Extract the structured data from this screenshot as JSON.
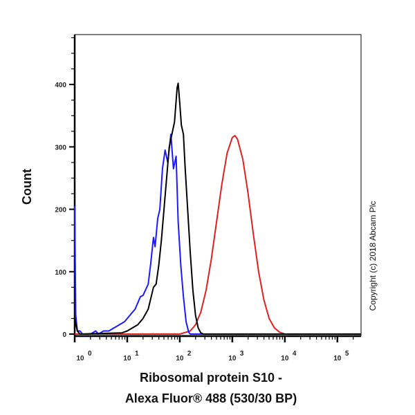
{
  "chart_data": {
    "type": "line",
    "xlabel_lines": [
      "Ribosomal protein S10 -",
      "Alexa Fluor® 488 (530/30 BP)"
    ],
    "ylabel": "Count",
    "x_scale": "log",
    "x_ticks": [
      {
        "base": "10",
        "exp": "0",
        "value": 1
      },
      {
        "base": "10",
        "exp": "1",
        "value": 10
      },
      {
        "base": "10",
        "exp": "2",
        "value": 100
      },
      {
        "base": "10",
        "exp": "3",
        "value": 1000
      },
      {
        "base": "10",
        "exp": "4",
        "value": 10000
      },
      {
        "base": "10",
        "exp": "5",
        "value": 100000
      }
    ],
    "y_ticks": [
      "0",
      "100",
      "200",
      "300",
      "400"
    ],
    "ylim": [
      0,
      480
    ],
    "xlim_log10": [
      0,
      5.45
    ],
    "grid": false,
    "annotation": "Copyright (c) 2018 Abcam Plc",
    "series": [
      {
        "color": "#e02020",
        "log10_x": [
          0,
          2.0,
          2.2,
          2.3,
          2.4,
          2.5,
          2.6,
          2.7,
          2.8,
          2.9,
          3.0,
          3.05,
          3.1,
          3.2,
          3.3,
          3.4,
          3.5,
          3.6,
          3.7,
          3.8,
          3.9,
          4.0,
          5.45
        ],
        "y": [
          0,
          0,
          5,
          15,
          35,
          70,
          120,
          180,
          240,
          290,
          315,
          318,
          312,
          280,
          225,
          160,
          100,
          55,
          25,
          10,
          3,
          0,
          0
        ]
      },
      {
        "color": "#1a1aff",
        "log10_x": [
          0,
          0.02,
          0.05,
          0.1,
          0.15,
          0.3,
          0.4,
          0.45,
          0.55,
          0.65,
          0.75,
          0.85,
          0.95,
          1.05,
          1.15,
          1.25,
          1.3,
          1.4,
          1.45,
          1.5,
          1.53,
          1.58,
          1.62,
          1.67,
          1.72,
          1.77,
          1.83,
          1.88,
          1.93,
          1.97,
          2.02,
          2.07,
          2.12,
          2.17,
          2.2,
          5.45
        ],
        "y": [
          205,
          30,
          5,
          5,
          0,
          0,
          5,
          0,
          5,
          5,
          10,
          15,
          20,
          30,
          40,
          60,
          62,
          80,
          115,
          155,
          140,
          185,
          200,
          265,
          295,
          275,
          320,
          265,
          285,
          180,
          110,
          60,
          20,
          3,
          0,
          0
        ]
      },
      {
        "color": "#000000",
        "log10_x": [
          0,
          0.05,
          0.1,
          0.9,
          1.0,
          1.1,
          1.2,
          1.3,
          1.4,
          1.5,
          1.55,
          1.6,
          1.65,
          1.7,
          1.75,
          1.8,
          1.85,
          1.9,
          1.95,
          1.97,
          2.0,
          2.03,
          2.07,
          2.1,
          2.15,
          2.2,
          2.25,
          2.3,
          2.35,
          2.4,
          2.45,
          5.45
        ],
        "y": [
          25,
          5,
          0,
          2,
          5,
          10,
          15,
          25,
          40,
          75,
          80,
          110,
          150,
          200,
          250,
          300,
          320,
          340,
          395,
          402,
          370,
          335,
          320,
          270,
          200,
          130,
          70,
          30,
          10,
          2,
          0,
          0
        ]
      }
    ]
  }
}
